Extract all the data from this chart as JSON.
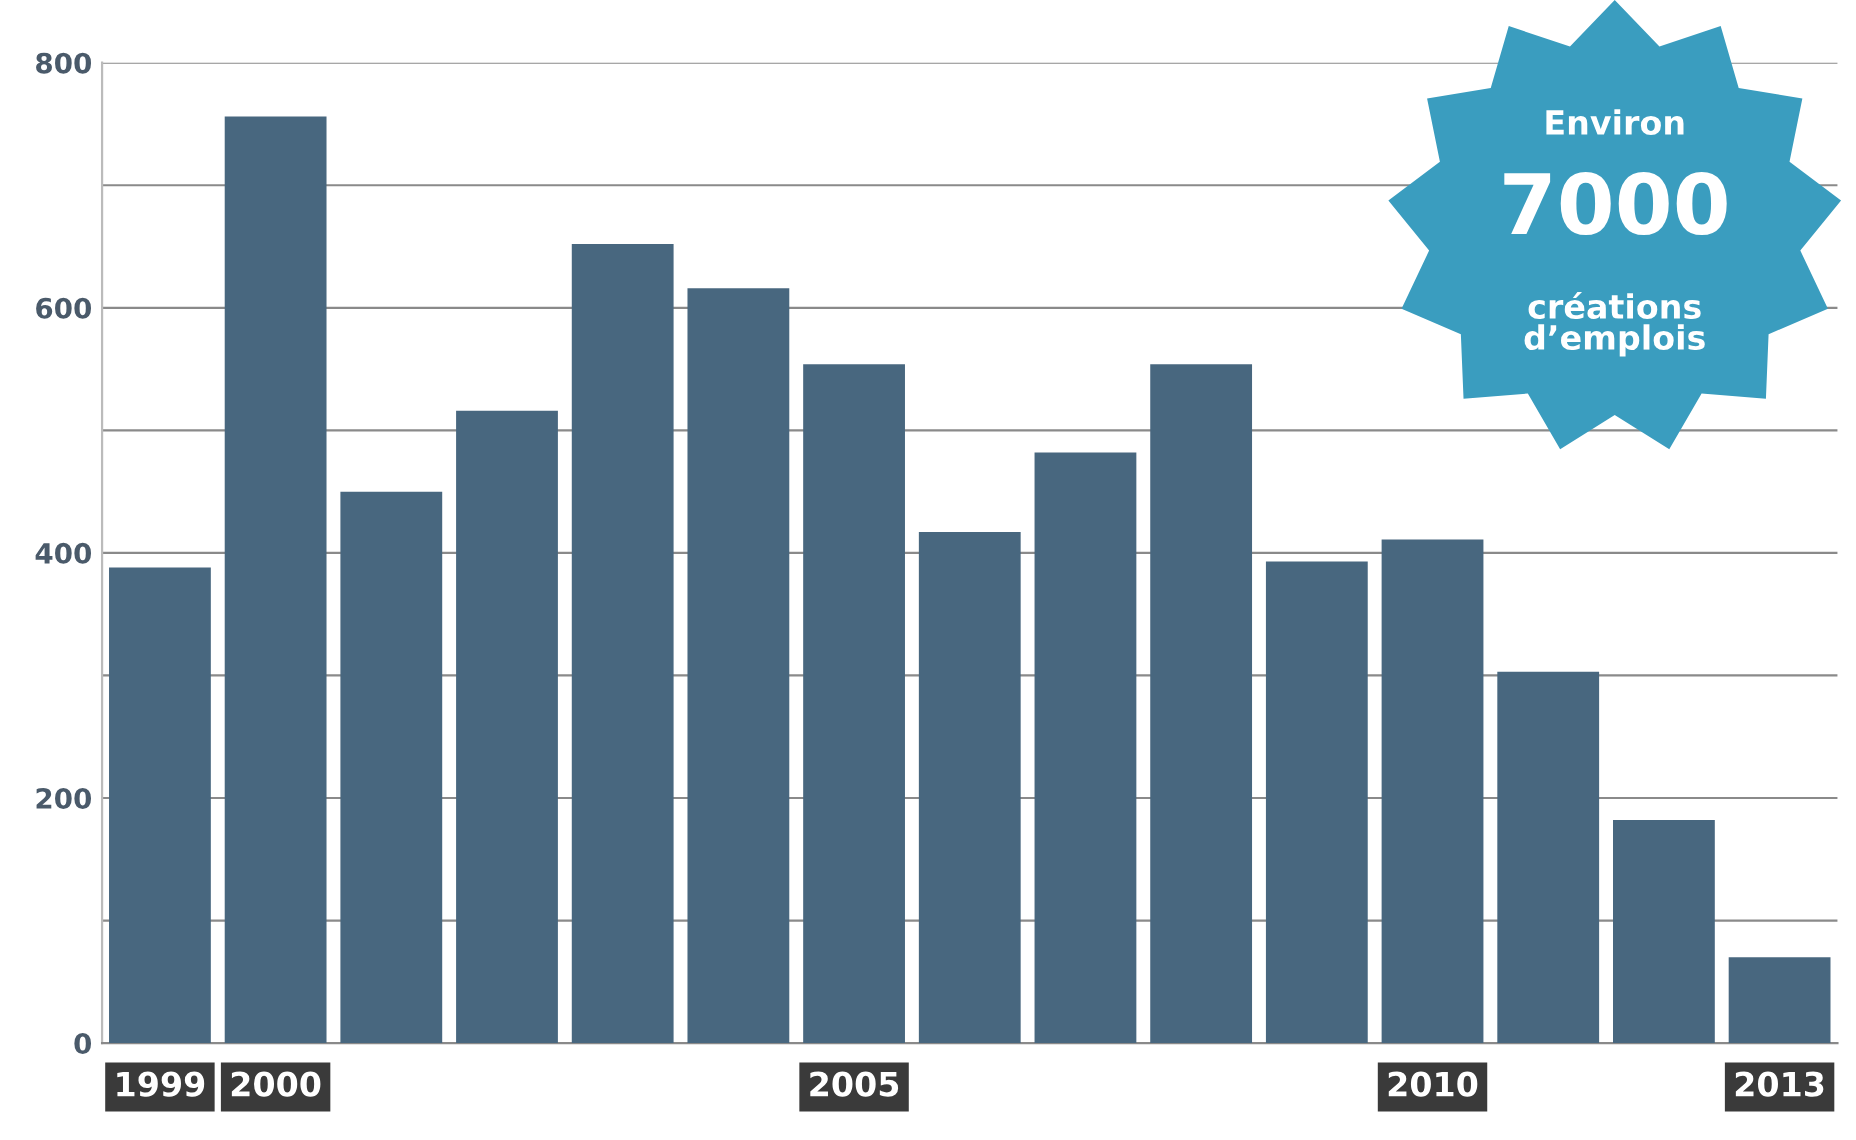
{
  "chart_data": {
    "type": "bar",
    "categories": [
      "1999",
      "2000",
      null,
      null,
      null,
      null,
      "2005",
      null,
      null,
      null,
      null,
      "2010",
      null,
      null,
      "2013"
    ],
    "values": [
      388,
      756,
      450,
      516,
      652,
      616,
      554,
      417,
      482,
      554,
      393,
      411,
      303,
      182,
      70
    ],
    "color": "#48677f",
    "ylim": [
      0,
      800
    ],
    "yticks": [
      0,
      {
        "value": 100,
        "label": null
      },
      200,
      {
        "value": 300,
        "label": null
      },
      400,
      {
        "value": 500,
        "label": null
      },
      600,
      {
        "value": 700,
        "label": null
      },
      800
    ],
    "grid": "y",
    "annotations": [
      "Environ",
      "7000",
      "créations\nd’emplois"
    ]
  }
}
